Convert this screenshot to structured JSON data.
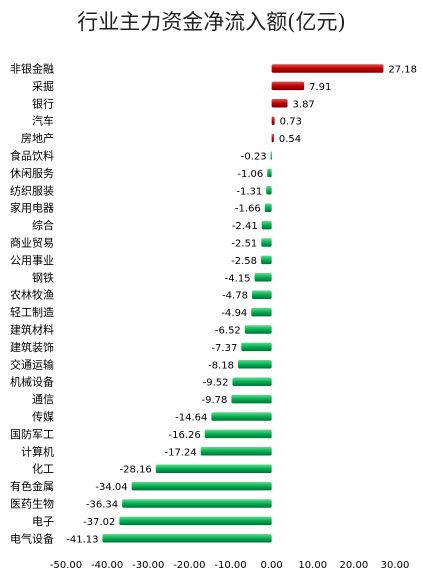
{
  "chart_data": {
    "type": "bar",
    "orientation": "horizontal",
    "title": "行业主力资金净流入额(亿元)",
    "xlabel": "",
    "ylabel": "",
    "xlim": [
      -50,
      30
    ],
    "xticks": [
      "-50.00",
      "-40.00",
      "-30.00",
      "-20.00",
      "-10.00",
      "0.00",
      "10.00",
      "20.00",
      "30.00"
    ],
    "grid": false,
    "legend": "none",
    "colors": {
      "positive": "#c00000",
      "negative": "#00b050"
    },
    "categories": [
      "非银金融",
      "采掘",
      "银行",
      "汽车",
      "房地产",
      "食品饮料",
      "休闲服务",
      "纺织服装",
      "家用电器",
      "综合",
      "商业贸易",
      "公用事业",
      "钢铁",
      "农林牧渔",
      "轻工制造",
      "建筑材料",
      "建筑装饰",
      "交通运输",
      "机械设备",
      "通信",
      "传媒",
      "国防军工",
      "计算机",
      "化工",
      "有色金属",
      "医药生物",
      "电子",
      "电气设备"
    ],
    "values": [
      27.18,
      7.91,
      3.87,
      0.73,
      0.54,
      -0.23,
      -1.06,
      -1.31,
      -1.66,
      -2.41,
      -2.51,
      -2.58,
      -4.15,
      -4.78,
      -4.94,
      -6.52,
      -7.37,
      -8.18,
      -9.52,
      -9.78,
      -14.64,
      -16.26,
      -17.24,
      -28.16,
      -34.04,
      -36.34,
      -37.02,
      -41.13
    ],
    "value_labels": [
      "27.18",
      "7.91",
      "3.87",
      "0.73",
      "0.54",
      "-0.23",
      "-1.06",
      "-1.31",
      "-1.66",
      "-2.41",
      "-2.51",
      "-2.58",
      "-4.15",
      "-4.78",
      "-4.94",
      "-6.52",
      "-7.37",
      "-8.18",
      "-9.52",
      "-9.78",
      "-14.64",
      "-16.26",
      "-17.24",
      "-28.16",
      "-34.04",
      "-36.34",
      "-37.02",
      "-41.13"
    ]
  }
}
